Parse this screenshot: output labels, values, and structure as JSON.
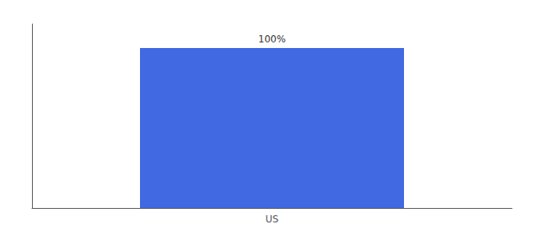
{
  "chart_data": {
    "type": "bar",
    "categories": [
      "US"
    ],
    "values": [
      100
    ],
    "value_labels": [
      "100%"
    ],
    "color": "#4169e1",
    "ylim": [
      0,
      115
    ],
    "grid": false,
    "data_labels": true,
    "tick_labels": "x"
  }
}
